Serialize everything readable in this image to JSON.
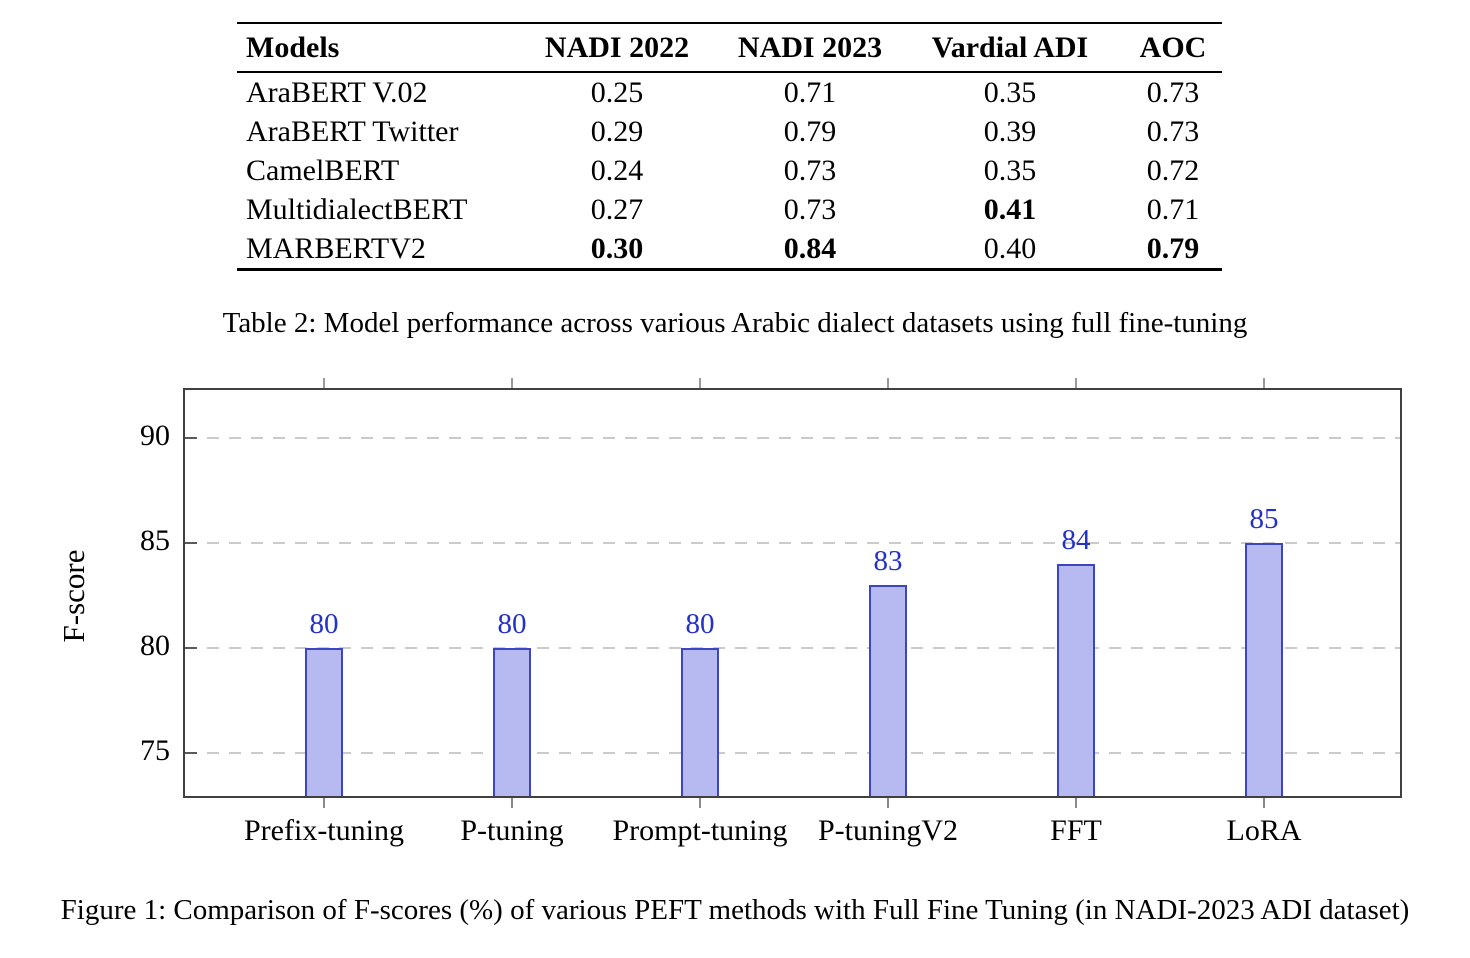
{
  "table": {
    "caption": "Table 2: Model performance across various Arabic dialect datasets using full fine-tuning",
    "headers": [
      "Models",
      "NADI 2022",
      "NADI 2023",
      "Vardial ADI",
      "AOC"
    ],
    "rows": [
      {
        "model": "AraBERT V.02",
        "values": [
          "0.25",
          "0.71",
          "0.35",
          "0.73"
        ],
        "bold": [
          false,
          false,
          false,
          false
        ]
      },
      {
        "model": "AraBERT Twitter",
        "values": [
          "0.29",
          "0.79",
          "0.39",
          "0.73"
        ],
        "bold": [
          false,
          false,
          false,
          false
        ]
      },
      {
        "model": "CamelBERT",
        "values": [
          "0.24",
          "0.73",
          "0.35",
          "0.72"
        ],
        "bold": [
          false,
          false,
          false,
          false
        ]
      },
      {
        "model": "MultidialectBERT",
        "values": [
          "0.27",
          "0.73",
          "0.41",
          "0.71"
        ],
        "bold": [
          false,
          false,
          true,
          false
        ]
      },
      {
        "model": "MARBERTV2",
        "values": [
          "0.30",
          "0.84",
          "0.40",
          "0.79"
        ],
        "bold": [
          true,
          true,
          false,
          true
        ]
      }
    ]
  },
  "chart_data": {
    "type": "bar",
    "categories": [
      "Prefix-tuning",
      "P-tuning",
      "Prompt-tuning",
      "P-tuningV2",
      "FFT",
      "LoRA"
    ],
    "values": [
      80,
      80,
      80,
      83,
      84,
      85
    ],
    "title": "",
    "xlabel": "",
    "ylabel": "F-score",
    "yticks": [
      75,
      80,
      85,
      90
    ],
    "ylim": [
      72.9,
      92.3
    ],
    "grid": "horizontal-dashed",
    "value_labels_shown": true,
    "colors": {
      "bar_fill": "#b6baf1",
      "bar_border": "#3d46c2",
      "value_label": "#2231c8",
      "gridline": "#cbcbcb",
      "axis_border": "#404040"
    }
  },
  "figure_caption": "Figure 1: Comparison of F-scores (%) of various PEFT methods with Full Fine Tuning (in NADI-2023 ADI dataset)"
}
